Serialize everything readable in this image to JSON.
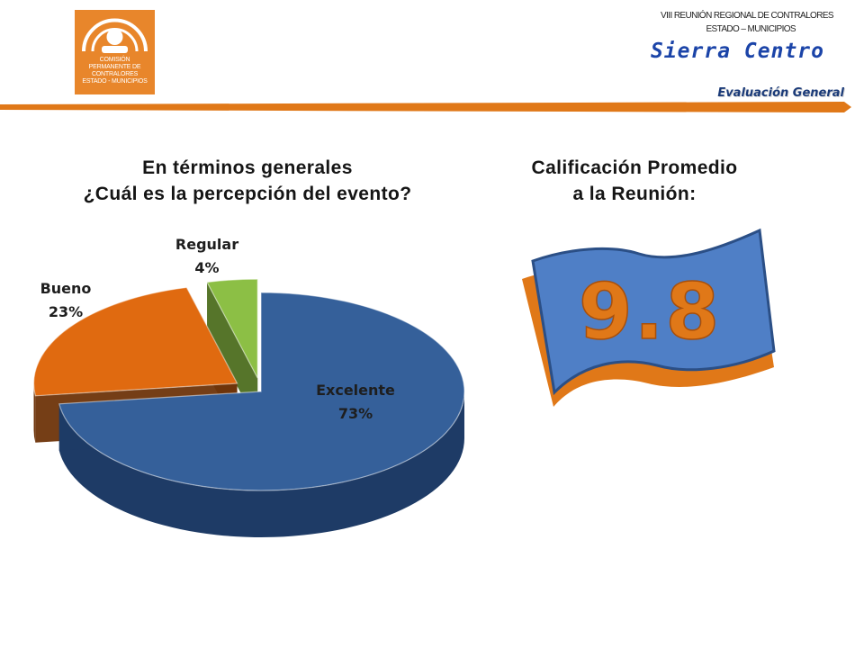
{
  "logo": {
    "icon": "sunrise-arch-emblem",
    "lines": [
      "COMISIÓN",
      "PERMANENTE DE",
      "CONTRALORES",
      "ESTADO - MUNICIPIOS"
    ],
    "color": "#e8862b"
  },
  "header": {
    "meeting_line1": "VIII REUNIÓN REGIONAL DE CONTRALORES",
    "meeting_line2": "ESTADO – MUNICIPIOS",
    "brand_title": "Sierra Centro",
    "section_label": "Evaluación General",
    "bar_color": "#e07818",
    "title_color": "#1b44a8"
  },
  "chart_title": {
    "line1": "En términos generales",
    "line2": "¿Cuál es la percepción del evento?"
  },
  "rating": {
    "title_line1": "Calificación Promedio",
    "title_line2": "a la Reunión:",
    "value": "9.8",
    "flag_color": "#4f7fc6",
    "flag_border_color": "#e07818",
    "value_color": "#e07818"
  },
  "chart_data": {
    "type": "pie",
    "style": "3d-exploded",
    "title": "",
    "categories": [
      "Excelente",
      "Bueno",
      "Regular"
    ],
    "values": [
      73,
      23,
      4
    ],
    "labels": [
      "73%",
      "23%",
      "4%"
    ],
    "colors": [
      "#35609a",
      "#e06a10",
      "#8cbf45"
    ],
    "side_colors": [
      "#1e3b66",
      "#6e340a",
      "#4d6e1f"
    ],
    "legend": "none"
  }
}
